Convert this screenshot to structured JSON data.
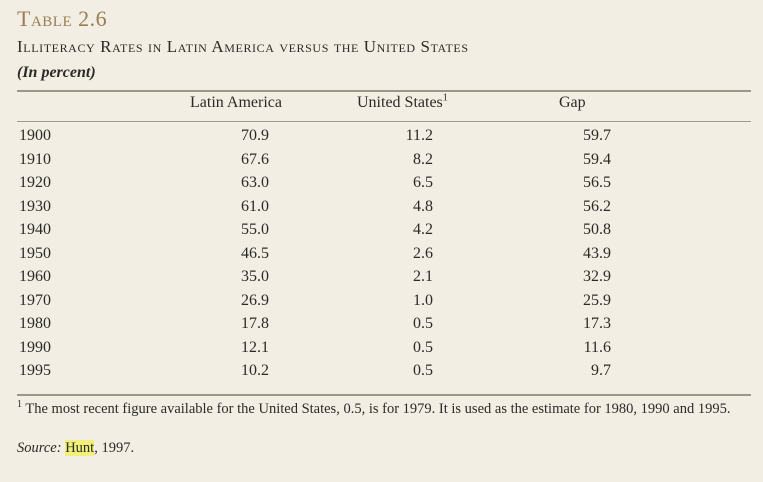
{
  "table": {
    "label": "Table 2.6",
    "title": "Illiteracy Rates in Latin America versus the United States",
    "unit": "(In percent)",
    "columns": {
      "latin": "Latin America",
      "us": "United States",
      "us_note": "1",
      "gap": "Gap"
    },
    "rows": [
      {
        "year": "1900",
        "latin": "70.9",
        "us": "11.2",
        "gap": "59.7"
      },
      {
        "year": "1910",
        "latin": "67.6",
        "us": "8.2",
        "gap": "59.4"
      },
      {
        "year": "1920",
        "latin": "63.0",
        "us": "6.5",
        "gap": "56.5"
      },
      {
        "year": "1930",
        "latin": "61.0",
        "us": "4.8",
        "gap": "56.2"
      },
      {
        "year": "1940",
        "latin": "55.0",
        "us": "4.2",
        "gap": "50.8"
      },
      {
        "year": "1950",
        "latin": "46.5",
        "us": "2.6",
        "gap": "43.9"
      },
      {
        "year": "1960",
        "latin": "35.0",
        "us": "2.1",
        "gap": "32.9"
      },
      {
        "year": "1970",
        "latin": "26.9",
        "us": "1.0",
        "gap": "25.9"
      },
      {
        "year": "1980",
        "latin": "17.8",
        "us": "0.5",
        "gap": "17.3"
      },
      {
        "year": "1990",
        "latin": "12.1",
        "us": "0.5",
        "gap": "11.6"
      },
      {
        "year": "1995",
        "latin": "10.2",
        "us": "0.5",
        "gap": "9.7"
      }
    ]
  },
  "footnote": {
    "mark": "1",
    "text": "The most recent figure available for the United States, 0.5, is for 1979. It is used as the estimate for 1980, 1990 and 1995."
  },
  "source": {
    "label": "Source:",
    "author": "Hunt",
    "year": ", 1997.",
    "highlight_color": "#f0f07a"
  }
}
